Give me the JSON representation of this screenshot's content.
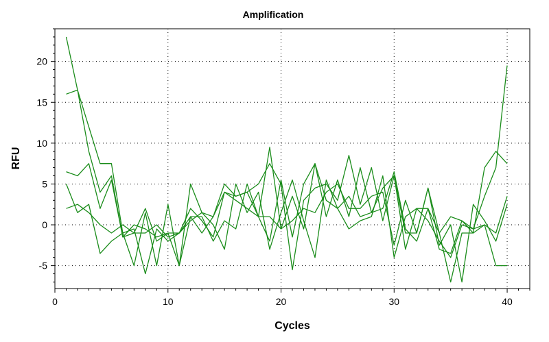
{
  "chart_data": {
    "type": "line",
    "title": "Amplification",
    "xlabel": "Cycles",
    "ylabel": "RFU",
    "xlim": [
      0,
      42
    ],
    "ylim": [
      -7.8,
      24
    ],
    "xticks": [
      0,
      10,
      20,
      30,
      40
    ],
    "yticks": [
      -5,
      0,
      5,
      10,
      15,
      20
    ],
    "grid": true,
    "legend": "none",
    "series_color": "#1a8c1a",
    "x": [
      1,
      2,
      3,
      4,
      5,
      6,
      7,
      8,
      9,
      10,
      11,
      12,
      13,
      14,
      15,
      16,
      17,
      18,
      19,
      20,
      21,
      22,
      23,
      24,
      25,
      26,
      27,
      28,
      29,
      30,
      31,
      32,
      33,
      34,
      35,
      36,
      37,
      38,
      39,
      40
    ],
    "series": [
      {
        "values": [
          23,
          16.5,
          9,
          4,
          6,
          -1.5,
          0,
          -0.5,
          -1.5,
          -1,
          -1,
          1,
          -1,
          1,
          4,
          3.5,
          4,
          1,
          9.5,
          -0.5,
          3.5,
          -0.5,
          7.5,
          1,
          5.5,
          1,
          7,
          1.5,
          2,
          6.5,
          -0.5,
          -2,
          2,
          -1,
          1,
          0.5,
          -1,
          7,
          9,
          7.5
        ]
      },
      {
        "values": [
          16,
          16.5,
          12,
          7.5,
          7.5,
          -1,
          -0.5,
          -6,
          -0.5,
          -2,
          -1,
          0.5,
          1.5,
          1,
          5,
          3.5,
          4,
          5,
          7.5,
          5,
          -5.5,
          3,
          4.5,
          5,
          3,
          8.5,
          2.5,
          7,
          0.5,
          6,
          -3,
          2,
          2,
          -3,
          -3.5,
          0.5,
          -0.5,
          3.5,
          7,
          19.5
        ]
      },
      {
        "values": [
          6.5,
          6,
          7.5,
          2,
          5.5,
          -1.5,
          -1,
          2,
          -2,
          -1,
          -5,
          1,
          1,
          -2,
          0.5,
          -0.5,
          5,
          1,
          -2,
          5.5,
          -1.5,
          5,
          7.5,
          3,
          2,
          3.5,
          1,
          1.5,
          4.5,
          6,
          -1,
          -1,
          4.5,
          -2.5,
          0,
          -7,
          2.5,
          0.5,
          -2,
          2.5
        ]
      },
      {
        "values": [
          5,
          1.5,
          2.5,
          -3.5,
          -2,
          -1,
          -5,
          1.5,
          -5,
          2.5,
          -5,
          5,
          1.5,
          0,
          -3,
          5,
          1.5,
          4,
          -3,
          1.5,
          5.5,
          0.5,
          -4,
          5.5,
          2,
          -0.5,
          0.5,
          1,
          6,
          -4,
          1,
          2,
          0.5,
          -2,
          -4,
          0,
          -0.5,
          0,
          -5,
          -5
        ]
      },
      {
        "values": [
          2,
          2.5,
          1.5,
          0,
          -1,
          0,
          -1,
          -1,
          0,
          -1.5,
          -1,
          2,
          0.5,
          -1.5,
          4,
          3,
          2,
          1,
          1,
          -0.5,
          0.5,
          2,
          1.5,
          4,
          5,
          2,
          2,
          3.5,
          4,
          -2.5,
          3,
          -1,
          4.5,
          -1,
          -7,
          -1,
          -1,
          0,
          -1,
          3.5
        ]
      }
    ]
  }
}
